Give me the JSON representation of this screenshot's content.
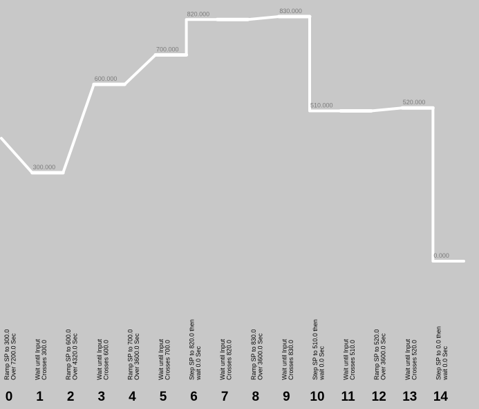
{
  "chart_data": {
    "type": "profile",
    "categories": [
      0,
      1,
      2,
      3,
      4,
      5,
      6,
      7,
      8,
      9,
      10,
      11,
      12,
      13,
      14
    ],
    "descriptions": [
      [
        "Ramp SP to 300.0",
        "Over 7200.0 Sec"
      ],
      [
        "Wait until Input",
        "Crosses 300.0"
      ],
      [
        "Ramp SP to 600.0",
        "Over 4320.0 Sec"
      ],
      [
        "Wait until Input",
        "Crosses 600.0"
      ],
      [
        "Ramp SP to 700.0",
        "Over 3600.0 Sec"
      ],
      [
        "Wait until Input",
        "Crosses 700.0"
      ],
      [
        "Step SP to 820.0 then",
        "wait 0.0 Sec"
      ],
      [
        "Wait until Input",
        "Crosses 820.0"
      ],
      [
        "Ramp SP to 830.0",
        "Over 3600.0 Sec"
      ],
      [
        "Wait until Input",
        "Crosses 830.0"
      ],
      [
        "Step SP to 510.0 then",
        "wait 0.0 Sec"
      ],
      [
        "Wait until Input",
        "Crosses 510.0"
      ],
      [
        "Ramp SP to 520.0",
        "Over 3600.0 Sec"
      ],
      [
        "Wait until Input",
        "Crosses 520.0"
      ],
      [
        "Step SP to 0.0 then",
        "wait 0.0 Sec"
      ]
    ],
    "kinds": [
      "ramp",
      "wait",
      "ramp",
      "wait",
      "ramp",
      "wait",
      "step",
      "wait",
      "ramp",
      "wait",
      "step",
      "wait",
      "ramp",
      "wait",
      "step"
    ],
    "start": 417,
    "values": [
      300,
      300,
      600,
      600,
      700,
      700,
      820,
      820,
      830,
      830,
      510,
      510,
      520,
      520,
      0
    ],
    "value_labels": [
      null,
      "300.000",
      null,
      "600.000",
      null,
      "700.000",
      "820.000",
      null,
      null,
      "830.000",
      "510.000",
      null,
      null,
      "520.000",
      "0.000"
    ],
    "ylim": [
      0,
      830
    ],
    "color": "#ffffff"
  }
}
